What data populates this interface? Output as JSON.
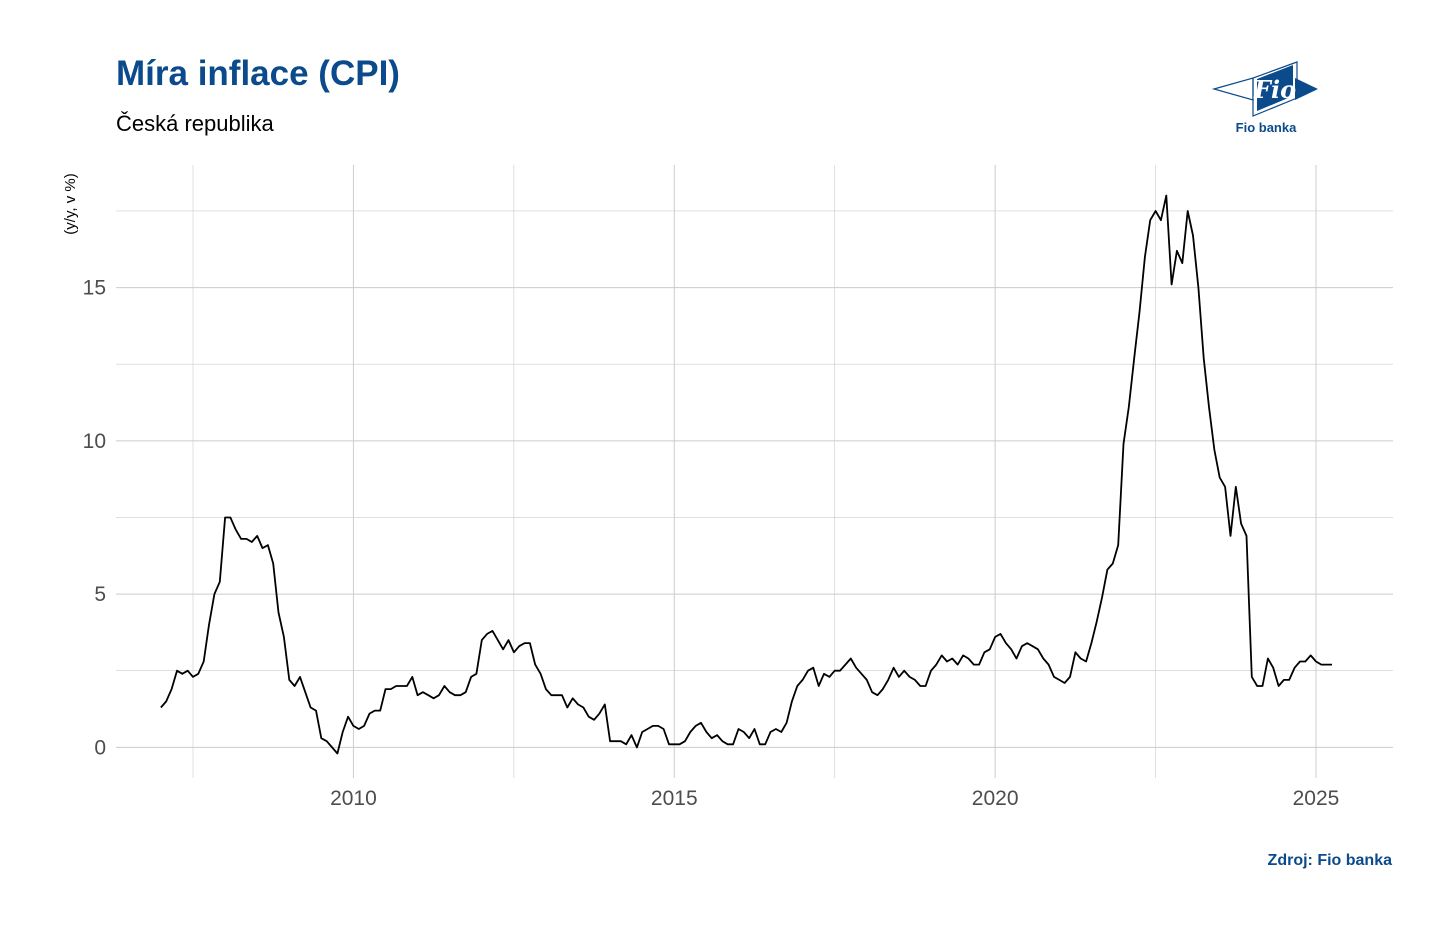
{
  "header": {
    "title": "Míra inflace (CPI)",
    "subtitle": "Česká republika"
  },
  "logo": {
    "text": "Fio",
    "caption": "Fio banka",
    "color": "#0b4a8b"
  },
  "footer": {
    "source": "Zdroj: Fio banka"
  },
  "chart_data": {
    "type": "line",
    "title": "Míra inflace (CPI)",
    "subtitle": "Česká republika",
    "xlabel": "",
    "ylabel": "(y/y, v %)",
    "xlim": [
      2006.3,
      2026.2
    ],
    "ylim": [
      -1.0,
      19.0
    ],
    "x_ticks": [
      2010,
      2015,
      2020,
      2025
    ],
    "y_ticks": [
      0,
      5,
      10,
      15
    ],
    "grid": true,
    "line_color": "#000000",
    "grid_color": "#cccccc",
    "series": [
      {
        "x": [
          2007.0,
          2007.083,
          2007.167,
          2007.25,
          2007.333,
          2007.417,
          2007.5,
          2007.583,
          2007.667,
          2007.75,
          2007.833,
          2007.917,
          2008.0,
          2008.083,
          2008.167,
          2008.25,
          2008.333,
          2008.417,
          2008.5,
          2008.583,
          2008.667,
          2008.75,
          2008.833,
          2008.917,
          2009.0,
          2009.083,
          2009.167,
          2009.25,
          2009.333,
          2009.417,
          2009.5,
          2009.583,
          2009.667,
          2009.75,
          2009.833,
          2009.917,
          2010.0,
          2010.083,
          2010.167,
          2010.25,
          2010.333,
          2010.417,
          2010.5,
          2010.583,
          2010.667,
          2010.75,
          2010.833,
          2010.917,
          2011.0,
          2011.083,
          2011.167,
          2011.25,
          2011.333,
          2011.417,
          2011.5,
          2011.583,
          2011.667,
          2011.75,
          2011.833,
          2011.917,
          2012.0,
          2012.083,
          2012.167,
          2012.25,
          2012.333,
          2012.417,
          2012.5,
          2012.583,
          2012.667,
          2012.75,
          2012.833,
          2012.917,
          2013.0,
          2013.083,
          2013.167,
          2013.25,
          2013.333,
          2013.417,
          2013.5,
          2013.583,
          2013.667,
          2013.75,
          2013.833,
          2013.917,
          2014.0,
          2014.083,
          2014.167,
          2014.25,
          2014.333,
          2014.417,
          2014.5,
          2014.583,
          2014.667,
          2014.75,
          2014.833,
          2014.917,
          2015.0,
          2015.083,
          2015.167,
          2015.25,
          2015.333,
          2015.417,
          2015.5,
          2015.583,
          2015.667,
          2015.75,
          2015.833,
          2015.917,
          2016.0,
          2016.083,
          2016.167,
          2016.25,
          2016.333,
          2016.417,
          2016.5,
          2016.583,
          2016.667,
          2016.75,
          2016.833,
          2016.917,
          2017.0,
          2017.083,
          2017.167,
          2017.25,
          2017.333,
          2017.417,
          2017.5,
          2017.583,
          2017.667,
          2017.75,
          2017.833,
          2017.917,
          2018.0,
          2018.083,
          2018.167,
          2018.25,
          2018.333,
          2018.417,
          2018.5,
          2018.583,
          2018.667,
          2018.75,
          2018.833,
          2018.917,
          2019.0,
          2019.083,
          2019.167,
          2019.25,
          2019.333,
          2019.417,
          2019.5,
          2019.583,
          2019.667,
          2019.75,
          2019.833,
          2019.917,
          2020.0,
          2020.083,
          2020.167,
          2020.25,
          2020.333,
          2020.417,
          2020.5,
          2020.583,
          2020.667,
          2020.75,
          2020.833,
          2020.917,
          2021.0,
          2021.083,
          2021.167,
          2021.25,
          2021.333,
          2021.417,
          2021.5,
          2021.583,
          2021.667,
          2021.75,
          2021.833,
          2021.917,
          2022.0,
          2022.083,
          2022.167,
          2022.25,
          2022.333,
          2022.417,
          2022.5,
          2022.583,
          2022.667,
          2022.75,
          2022.833,
          2022.917,
          2023.0,
          2023.083,
          2023.167,
          2023.25,
          2023.333,
          2023.417,
          2023.5,
          2023.583,
          2023.667,
          2023.75,
          2023.833,
          2023.917,
          2024.0,
          2024.083,
          2024.167,
          2024.25,
          2024.333,
          2024.417,
          2024.5,
          2024.583,
          2024.667,
          2024.75,
          2024.833,
          2024.917,
          2025.0,
          2025.083,
          2025.167,
          2025.25
        ],
        "y": [
          1.3,
          1.5,
          1.9,
          2.5,
          2.4,
          2.5,
          2.3,
          2.4,
          2.8,
          4.0,
          5.0,
          5.4,
          7.5,
          7.5,
          7.1,
          6.8,
          6.8,
          6.7,
          6.9,
          6.5,
          6.6,
          6.0,
          4.4,
          3.6,
          2.2,
          2.0,
          2.3,
          1.8,
          1.3,
          1.2,
          0.3,
          0.2,
          0.0,
          -0.2,
          0.5,
          1.0,
          0.7,
          0.6,
          0.7,
          1.1,
          1.2,
          1.2,
          1.9,
          1.9,
          2.0,
          2.0,
          2.0,
          2.3,
          1.7,
          1.8,
          1.7,
          1.6,
          1.7,
          2.0,
          1.8,
          1.7,
          1.7,
          1.8,
          2.3,
          2.4,
          3.5,
          3.7,
          3.8,
          3.5,
          3.2,
          3.5,
          3.1,
          3.3,
          3.4,
          3.4,
          2.7,
          2.4,
          1.9,
          1.7,
          1.7,
          1.7,
          1.3,
          1.6,
          1.4,
          1.3,
          1.0,
          0.9,
          1.1,
          1.4,
          0.2,
          0.2,
          0.2,
          0.1,
          0.4,
          0.0,
          0.5,
          0.6,
          0.7,
          0.7,
          0.6,
          0.1,
          0.1,
          0.1,
          0.2,
          0.5,
          0.7,
          0.8,
          0.5,
          0.3,
          0.4,
          0.2,
          0.1,
          0.1,
          0.6,
          0.5,
          0.3,
          0.6,
          0.1,
          0.1,
          0.5,
          0.6,
          0.5,
          0.8,
          1.5,
          2.0,
          2.2,
          2.5,
          2.6,
          2.0,
          2.4,
          2.3,
          2.5,
          2.5,
          2.7,
          2.9,
          2.6,
          2.4,
          2.2,
          1.8,
          1.7,
          1.9,
          2.2,
          2.6,
          2.3,
          2.5,
          2.3,
          2.2,
          2.0,
          2.0,
          2.5,
          2.7,
          3.0,
          2.8,
          2.9,
          2.7,
          3.0,
          2.9,
          2.7,
          2.7,
          3.1,
          3.2,
          3.6,
          3.7,
          3.4,
          3.2,
          2.9,
          3.3,
          3.4,
          3.3,
          3.2,
          2.9,
          2.7,
          2.3,
          2.2,
          2.1,
          2.3,
          3.1,
          2.9,
          2.8,
          3.4,
          4.1,
          4.9,
          5.8,
          6.0,
          6.6,
          9.9,
          11.1,
          12.7,
          14.2,
          16.0,
          17.2,
          17.5,
          17.2,
          18.0,
          15.1,
          16.2,
          15.8,
          17.5,
          16.7,
          15.0,
          12.7,
          11.1,
          9.7,
          8.8,
          8.5,
          6.9,
          8.5,
          7.3,
          6.9,
          2.3,
          2.0,
          2.0,
          2.9,
          2.6,
          2.0,
          2.2,
          2.2,
          2.6,
          2.8,
          2.8,
          3.0,
          2.8,
          2.7,
          2.7,
          2.7
        ]
      }
    ]
  }
}
